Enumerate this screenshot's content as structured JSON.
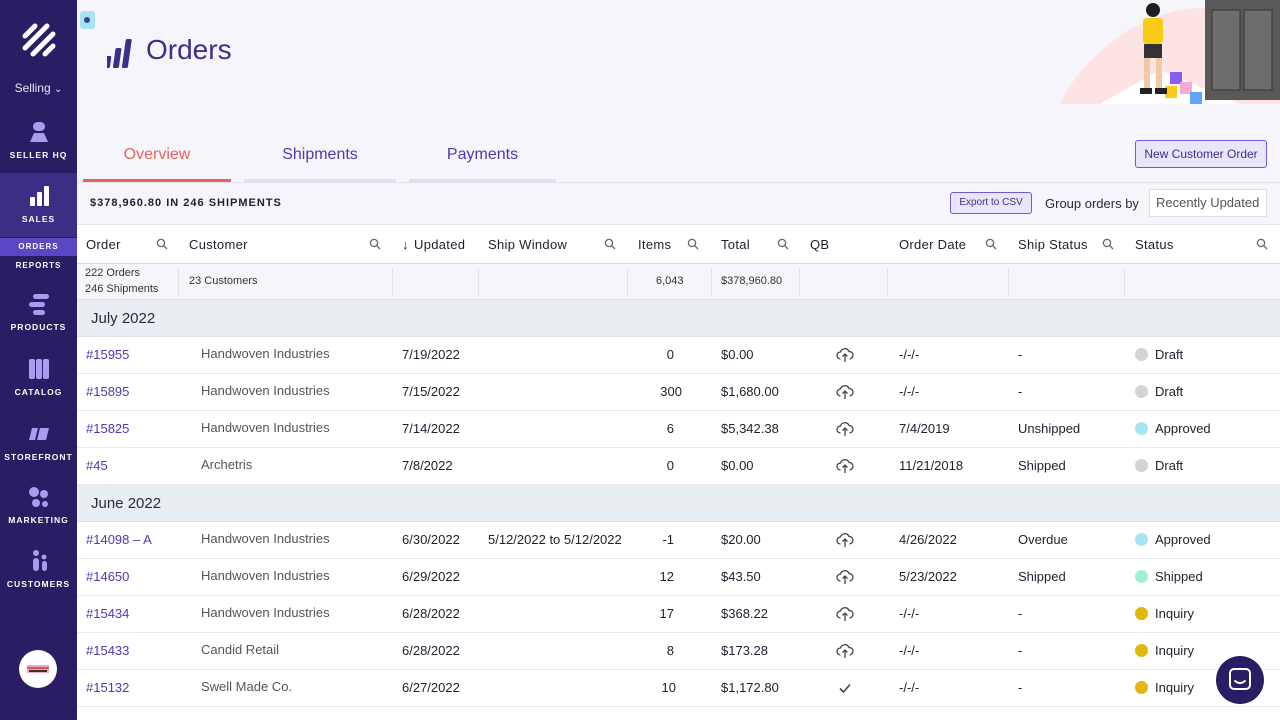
{
  "sidebar": {
    "selling_label": "Selling",
    "items": [
      {
        "label": "SELLER HQ",
        "icon": "seller-hq-icon"
      },
      {
        "label": "SALES",
        "icon": "sales-chart-icon"
      },
      {
        "label": "PRODUCTS",
        "icon": "products-icon"
      },
      {
        "label": "CATALOG",
        "icon": "catalog-icon"
      },
      {
        "label": "STOREFRONT",
        "icon": "storefront-icon"
      },
      {
        "label": "MARKETING",
        "icon": "marketing-icon"
      },
      {
        "label": "CUSTOMERS",
        "icon": "customers-icon"
      }
    ],
    "subnav": {
      "orders": "ORDERS",
      "reports": "REPORTS"
    }
  },
  "header": {
    "title": "Orders",
    "tabs": [
      "Overview",
      "Shipments",
      "Payments"
    ],
    "new_order_button": "New Customer Order"
  },
  "summary": {
    "text": "$378,960.80 IN 246 SHIPMENTS",
    "export_button": "Export to CSV",
    "group_label": "Group orders by",
    "group_value": "Recently Updated"
  },
  "columns": {
    "order": "Order",
    "customer": "Customer",
    "updated": "Updated",
    "ship_window": "Ship Window",
    "items": "Items",
    "total": "Total",
    "qb": "QB",
    "order_date": "Order Date",
    "ship_status": "Ship Status",
    "status": "Status"
  },
  "totals": {
    "orders": "222 Orders",
    "shipments": "246 Shipments",
    "customers": "23 Customers",
    "items": "6,043",
    "total": "$378,960.80"
  },
  "groups": [
    {
      "month": "July 2022",
      "rows": [
        {
          "order": "#15955",
          "customer": "Handwoven Industries",
          "updated": "7/19/2022",
          "ship_window": "",
          "items": "0",
          "total": "$0.00",
          "qb": "upload",
          "order_date": "-/-/-",
          "ship_status": "-",
          "status": "Draft",
          "status_color": "#d4d4d8"
        },
        {
          "order": "#15895",
          "customer": "Handwoven Industries",
          "updated": "7/15/2022",
          "ship_window": "",
          "items": "300",
          "total": "$1,680.00",
          "qb": "upload",
          "order_date": "-/-/-",
          "ship_status": "-",
          "status": "Draft",
          "status_color": "#d4d4d8"
        },
        {
          "order": "#15825",
          "customer": "Handwoven Industries",
          "updated": "7/14/2022",
          "ship_window": "",
          "items": "6",
          "total": "$5,342.38",
          "qb": "upload",
          "order_date": "7/4/2019",
          "ship_status": "Unshipped",
          "status": "Approved",
          "status_color": "#a5e4f2"
        },
        {
          "order": "#45",
          "customer": "Archetris",
          "updated": "7/8/2022",
          "ship_window": "",
          "items": "0",
          "total": "$0.00",
          "qb": "upload",
          "order_date": "11/21/2018",
          "ship_status": "Shipped",
          "status": "Draft",
          "status_color": "#d4d4d8"
        }
      ]
    },
    {
      "month": "June 2022",
      "rows": [
        {
          "order": "#14098 – A",
          "customer": "Handwoven Industries",
          "updated": "6/30/2022",
          "ship_window": "5/12/2022 to 5/12/2022",
          "items": "-1",
          "total": "$20.00",
          "qb": "upload",
          "order_date": "4/26/2022",
          "ship_status": "Overdue",
          "status": "Approved",
          "status_color": "#a5e4f2"
        },
        {
          "order": "#14650",
          "customer": "Handwoven Industries",
          "updated": "6/29/2022",
          "ship_window": "",
          "items": "12",
          "total": "$43.50",
          "qb": "upload",
          "order_date": "5/23/2022",
          "ship_status": "Shipped",
          "status": "Shipped",
          "status_color": "#9ff0d4"
        },
        {
          "order": "#15434",
          "customer": "Handwoven Industries",
          "updated": "6/28/2022",
          "ship_window": "",
          "items": "17",
          "total": "$368.22",
          "qb": "upload",
          "order_date": "-/-/-",
          "ship_status": "-",
          "status": "Inquiry",
          "status_color": "#e0b80e"
        },
        {
          "order": "#15433",
          "customer": "Candid Retail",
          "updated": "6/28/2022",
          "ship_window": "",
          "items": "8",
          "total": "$173.28",
          "qb": "upload",
          "order_date": "-/-/-",
          "ship_status": "-",
          "status": "Inquiry",
          "status_color": "#e0b80e"
        },
        {
          "order": "#15132",
          "customer": "Swell Made Co.",
          "updated": "6/27/2022",
          "ship_window": "",
          "items": "10",
          "total": "$1,172.80",
          "qb": "check",
          "order_date": "-/-/-",
          "ship_status": "-",
          "status": "Inquiry",
          "status_color": "#e0b80e"
        }
      ]
    }
  ]
}
